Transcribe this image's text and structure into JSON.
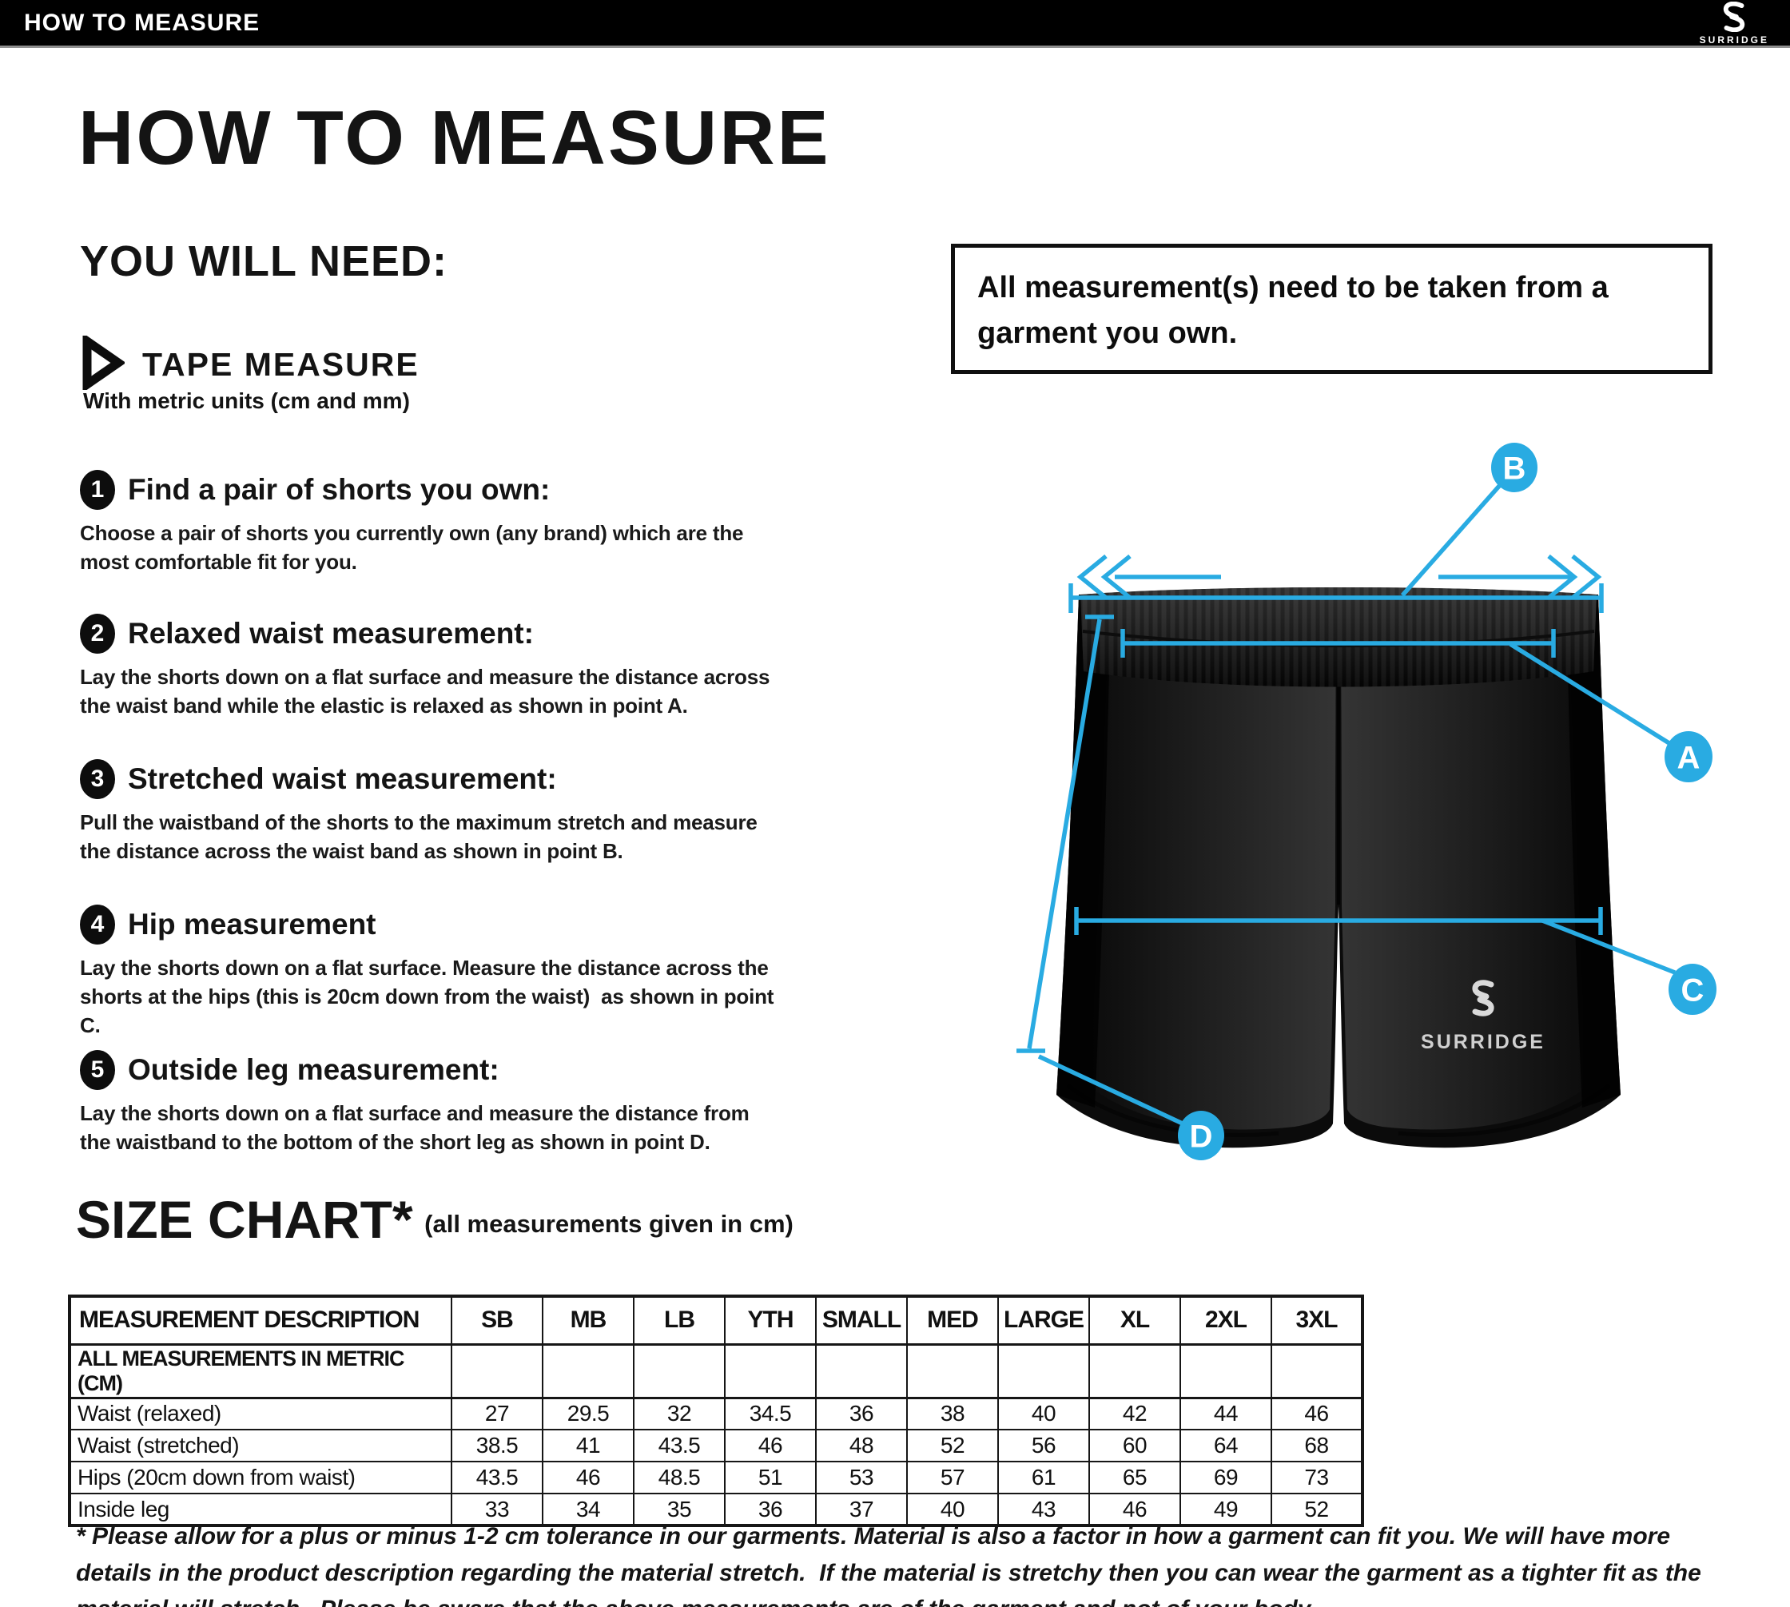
{
  "top_bar": {
    "title": "HOW TO MEASURE",
    "brand": "SURRIDGE"
  },
  "page": {
    "heading": "HOW TO MEASURE",
    "you_will_need_label": "YOU WILL NEED:",
    "tool": {
      "name": "TAPE MEASURE",
      "detail": "With metric units (cm and mm)"
    },
    "note_box": "All measurement(s) need to be taken from a garment you own."
  },
  "steps": [
    {
      "num": "1",
      "title": "Find a pair of shorts you own:",
      "body": "Choose a pair of shorts you currently own (any brand) which are the most comfortable fit for you."
    },
    {
      "num": "2",
      "title": "Relaxed waist measurement:",
      "body": "Lay the shorts down on a flat surface and measure the distance across the waist band while the elastic is relaxed as shown in point A."
    },
    {
      "num": "3",
      "title": "Stretched waist measurement:",
      "body": "Pull the waistband of the shorts to the maximum stretch and measure the distance across the waist band as shown in point B."
    },
    {
      "num": "4",
      "title": "Hip measurement",
      "body": "Lay the shorts down on a flat surface. Measure the distance across the shorts at the hips (this is 20cm down from the waist)  as shown in point C."
    },
    {
      "num": "5",
      "title": "Outside leg measurement:",
      "body": "Lay the shorts down on a flat surface and measure the distance from the waistband to the bottom of the short leg as shown in point D."
    }
  ],
  "diagram": {
    "markers": [
      "A",
      "B",
      "C",
      "D"
    ],
    "shorts_brand": "SURRIDGE",
    "accent_color": "#29ABE2"
  },
  "size_chart": {
    "title": "SIZE CHART*",
    "subtitle": "(all measurements given in cm)",
    "columns": [
      "MEASUREMENT DESCRIPTION",
      "SB",
      "MB",
      "LB",
      "YTH",
      "SMALL",
      "MED",
      "LARGE",
      "XL",
      "2XL",
      "3XL"
    ],
    "metric_note": "ALL MEASUREMENTS IN METRIC (CM)",
    "rows": [
      {
        "label": "Waist (relaxed)",
        "values": [
          "27",
          "29.5",
          "32",
          "34.5",
          "36",
          "38",
          "40",
          "42",
          "44",
          "46"
        ]
      },
      {
        "label": "Waist (stretched)",
        "values": [
          "38.5",
          "41",
          "43.5",
          "46",
          "48",
          "52",
          "56",
          "60",
          "64",
          "68"
        ]
      },
      {
        "label": "Hips (20cm down from waist)",
        "values": [
          "43.5",
          "46",
          "48.5",
          "51",
          "53",
          "57",
          "61",
          "65",
          "69",
          "73"
        ]
      },
      {
        "label": "Inside leg",
        "values": [
          "33",
          "34",
          "35",
          "36",
          "37",
          "40",
          "43",
          "46",
          "49",
          "52"
        ]
      }
    ]
  },
  "footnote": "* Please allow for a plus or minus 1-2 cm tolerance in our garments. Material is also a factor in how a garment can fit you. We will have more details in the product description regarding the material stretch.  If the material is stretchy then you can wear the garment as a tighter fit as the material will stretch.  Please be aware that the above measurements are of the garment and not of your body."
}
